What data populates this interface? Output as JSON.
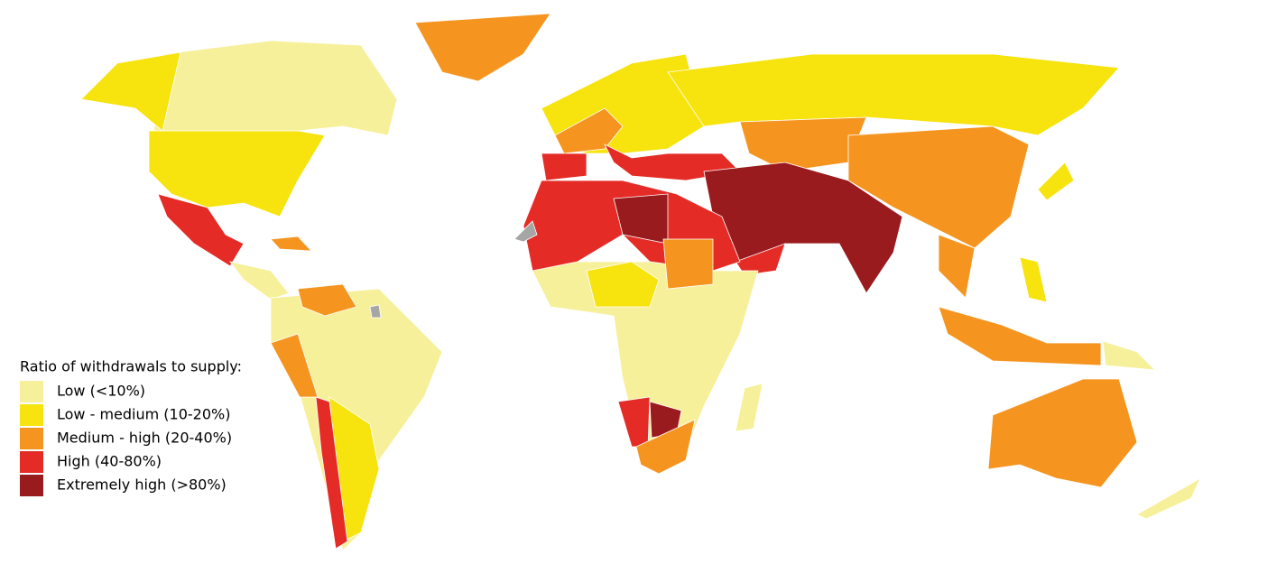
{
  "legend": {
    "title": "Ratio of withdrawals to supply:",
    "items": [
      {
        "label": "Low (<10%)",
        "color": "#f7f09a"
      },
      {
        "label": "Low - medium (10-20%)",
        "color": "#f7e30e"
      },
      {
        "label": "Medium - high (20-40%)",
        "color": "#f5951f"
      },
      {
        "label": "High (40-80%)",
        "color": "#e52b26"
      },
      {
        "label": "Extremely high (>80%)",
        "color": "#9a1b1e"
      }
    ]
  }
}
